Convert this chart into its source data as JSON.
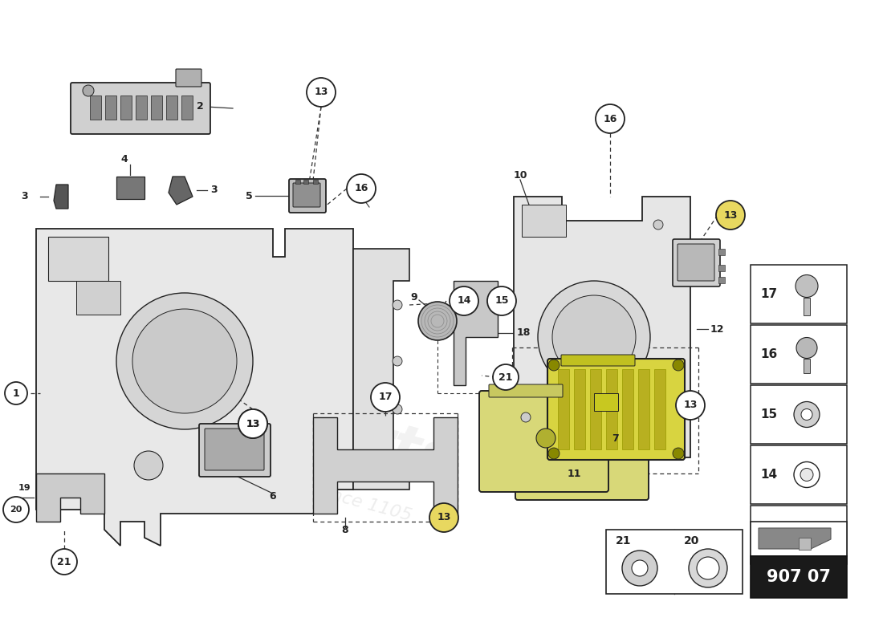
{
  "background_color": "#ffffff",
  "line_color": "#222222",
  "part_number": "907 07",
  "watermark_color": "#dddddd",
  "fig_w": 11.0,
  "fig_h": 8.0,
  "dpi": 100
}
